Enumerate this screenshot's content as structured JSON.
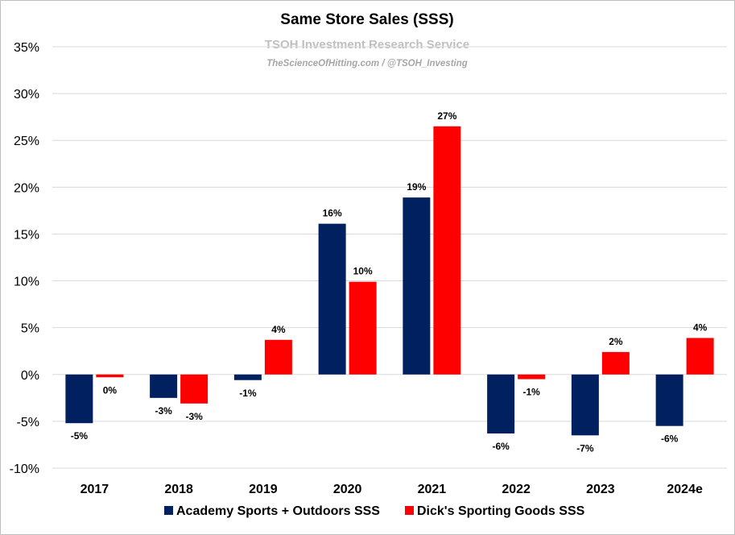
{
  "chart_data": {
    "type": "bar",
    "title": "Same Store Sales (SSS)",
    "subtitle": "TSOH Investment Research Service",
    "credit": "TheScienceOfHitting.com / @TSOH_Investing",
    "categories": [
      "2017",
      "2018",
      "2019",
      "2020",
      "2021",
      "2022",
      "2023",
      "2024e"
    ],
    "series": [
      {
        "name": "Academy Sports + Outdoors SSS",
        "color": "#002060",
        "values": [
          -5.2,
          -2.5,
          -0.6,
          16.1,
          18.9,
          -6.3,
          -6.5,
          -5.5
        ],
        "labels": [
          "-5%",
          "-3%",
          "-1%",
          "16%",
          "19%",
          "-6%",
          "-7%",
          "-6%"
        ]
      },
      {
        "name": "Dick's Sporting Goods SSS",
        "color": "#ff0000",
        "values": [
          -0.3,
          -3.1,
          3.7,
          9.9,
          26.5,
          -0.5,
          2.4,
          3.9
        ],
        "labels": [
          "0%",
          "-3%",
          "4%",
          "10%",
          "27%",
          "-1%",
          "2%",
          "4%"
        ]
      }
    ],
    "yticks": [
      -10,
      -5,
      0,
      5,
      10,
      15,
      20,
      25,
      30,
      35
    ],
    "ytick_labels": [
      "-10%",
      "-5%",
      "0%",
      "5%",
      "10%",
      "15%",
      "20%",
      "25%",
      "30%",
      "35%"
    ],
    "ylim": [
      -10,
      35
    ],
    "xlabel": "",
    "ylabel": "",
    "grid": true,
    "legend_position": "bottom"
  }
}
